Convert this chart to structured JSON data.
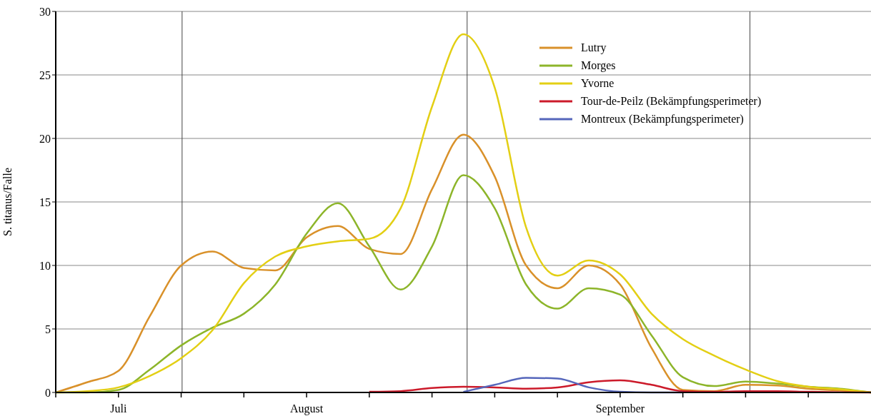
{
  "chart_data": {
    "type": "line",
    "ylabel": "S. titanus/Falle",
    "categories": [
      null,
      null,
      "Juli",
      null,
      null,
      null,
      null,
      null,
      "August",
      null,
      null,
      null,
      null,
      null,
      null,
      null,
      null,
      null,
      "September",
      null,
      null,
      null,
      null,
      null,
      null,
      null,
      null
    ],
    "ylim": [
      0,
      30
    ],
    "yticks": [
      0,
      5,
      10,
      15,
      20,
      25,
      30
    ],
    "grid": "y",
    "legend": "top right",
    "marker": "none",
    "line_style": "solid",
    "series": [
      {
        "name": "Lutry",
        "color": "#d9912a",
        "values": [
          0,
          0.8,
          1.7,
          6,
          10,
          11.1,
          9.8,
          9.6,
          12.2,
          13.1,
          11.3,
          10.9,
          16,
          20.3,
          17,
          10,
          8.2,
          10,
          8.5,
          3.5,
          0.2,
          0.1,
          0.6,
          0.55,
          0.3,
          0.15,
          0
        ]
      },
      {
        "name": "Morges",
        "color": "#8db52a",
        "values": [
          0,
          0,
          0.2,
          1.8,
          3.7,
          5.1,
          6.2,
          8.5,
          12.5,
          14.9,
          11.5,
          8.1,
          11.5,
          17.1,
          14.5,
          8.5,
          6.6,
          8.2,
          7.7,
          4.5,
          1.2,
          0.5,
          0.85,
          0.7,
          0.45,
          0.3,
          0
        ]
      },
      {
        "name": "Yvorne",
        "color": "#e3cf14",
        "values": [
          0,
          0.1,
          0.4,
          1.3,
          2.7,
          4.9,
          8.6,
          10.7,
          11.5,
          11.9,
          12.1,
          14.5,
          22.5,
          28.2,
          24,
          13,
          9.2,
          10.4,
          9.3,
          6.2,
          4.2,
          2.9,
          1.8,
          0.9,
          0.45,
          0.25,
          0
        ]
      },
      {
        "name": "Tour-de-Peilz (Bekämpfungsperimeter)",
        "color": "#cc1a2a",
        "values": [
          null,
          null,
          null,
          null,
          null,
          null,
          null,
          null,
          null,
          null,
          0.05,
          0.1,
          0.35,
          0.45,
          0.4,
          0.3,
          0.4,
          0.8,
          0.95,
          0.6,
          0.1,
          0.05,
          0.1,
          0.1,
          0.05,
          0.02,
          0
        ]
      },
      {
        "name": "Montreux (Bekämpfungsperimeter)",
        "color": "#5566bb",
        "values": [
          null,
          null,
          null,
          null,
          null,
          null,
          null,
          null,
          null,
          null,
          null,
          null,
          null,
          0.05,
          0.6,
          1.15,
          1.1,
          0.4,
          0.05,
          0,
          0,
          null,
          null,
          null,
          null,
          null,
          null
        ]
      }
    ]
  }
}
